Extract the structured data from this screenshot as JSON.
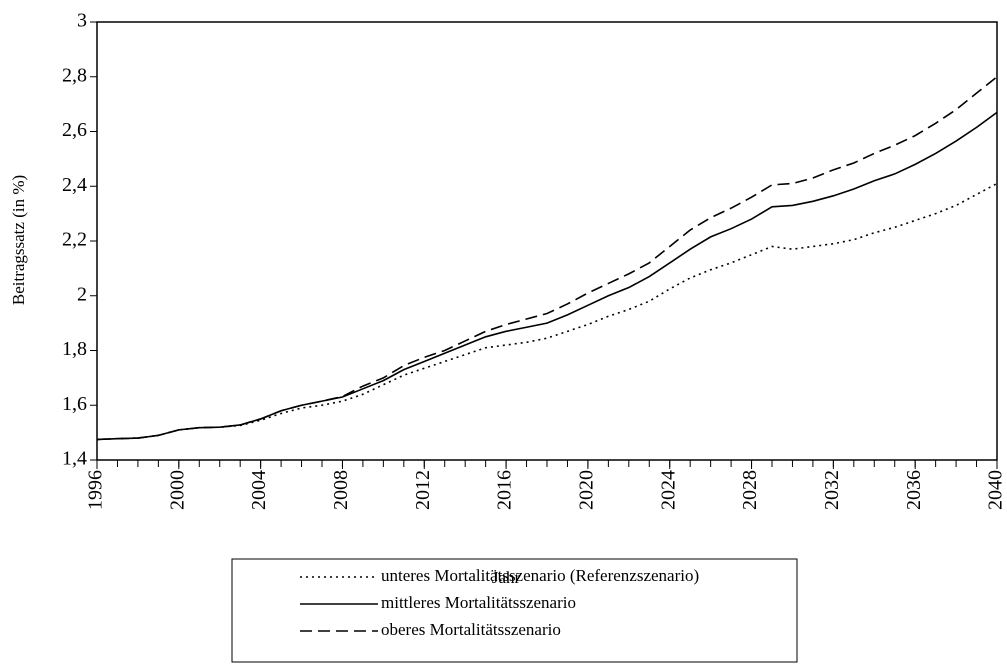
{
  "chart_data": {
    "type": "line",
    "xlabel": "Jahr",
    "ylabel": "Beitragssatz (in %)",
    "x": [
      1996,
      1997,
      1998,
      1999,
      2000,
      2001,
      2002,
      2003,
      2004,
      2005,
      2006,
      2007,
      2008,
      2009,
      2010,
      2011,
      2012,
      2013,
      2014,
      2015,
      2016,
      2017,
      2018,
      2019,
      2020,
      2021,
      2022,
      2023,
      2024,
      2025,
      2026,
      2027,
      2028,
      2029,
      2030,
      2031,
      2032,
      2033,
      2034,
      2035,
      2036,
      2037,
      2038,
      2039,
      2040
    ],
    "xlim": [
      1996,
      2040
    ],
    "xticks": [
      1996,
      2000,
      2004,
      2008,
      2012,
      2016,
      2020,
      2024,
      2028,
      2032,
      2036,
      2040
    ],
    "ylim": [
      1.4,
      3
    ],
    "yticks": [
      {
        "value": 1.4,
        "label": "1,4"
      },
      {
        "value": 1.6,
        "label": "1,6"
      },
      {
        "value": 1.8,
        "label": "1,8"
      },
      2,
      {
        "value": 2.2,
        "label": "2,2"
      },
      {
        "value": 2.4,
        "label": "2,4"
      },
      {
        "value": 2.6,
        "label": "2,6"
      },
      {
        "value": 2.8,
        "label": "2,8"
      },
      3
    ],
    "series": [
      {
        "name": "unteres Mortalitätsszenario (Referenzszenario)",
        "color": "#000000",
        "dash": "dotted",
        "values": [
          1.475,
          1.478,
          1.48,
          1.49,
          1.51,
          1.518,
          1.52,
          1.526,
          1.545,
          1.57,
          1.59,
          1.6,
          1.615,
          1.64,
          1.675,
          1.71,
          1.735,
          1.76,
          1.785,
          1.81,
          1.82,
          1.83,
          1.845,
          1.87,
          1.895,
          1.925,
          1.95,
          1.98,
          2.025,
          2.065,
          2.095,
          2.12,
          2.15,
          2.18,
          2.17,
          2.18,
          2.19,
          2.205,
          2.23,
          2.25,
          2.275,
          2.3,
          2.33,
          2.37,
          2.41
        ]
      },
      {
        "name": "mittleres Mortalitätsszenario",
        "color": "#000000",
        "dash": "solid",
        "values": [
          1.475,
          1.478,
          1.48,
          1.49,
          1.51,
          1.518,
          1.52,
          1.528,
          1.55,
          1.58,
          1.6,
          1.615,
          1.63,
          1.66,
          1.69,
          1.73,
          1.76,
          1.79,
          1.82,
          1.85,
          1.87,
          1.885,
          1.9,
          1.93,
          1.965,
          2.0,
          2.03,
          2.07,
          2.12,
          2.17,
          2.215,
          2.245,
          2.28,
          2.325,
          2.33,
          2.345,
          2.365,
          2.39,
          2.42,
          2.445,
          2.48,
          2.52,
          2.565,
          2.615,
          2.67
        ]
      },
      {
        "name": "oberes Mortalitätsszenario",
        "color": "#000000",
        "dash": "dashed",
        "values": [
          1.475,
          1.478,
          1.48,
          1.49,
          1.51,
          1.518,
          1.52,
          1.528,
          1.55,
          1.58,
          1.6,
          1.615,
          1.632,
          1.67,
          1.7,
          1.745,
          1.775,
          1.8,
          1.835,
          1.87,
          1.895,
          1.915,
          1.935,
          1.97,
          2.01,
          2.045,
          2.08,
          2.12,
          2.18,
          2.24,
          2.285,
          2.32,
          2.36,
          2.405,
          2.41,
          2.43,
          2.46,
          2.485,
          2.52,
          2.55,
          2.585,
          2.63,
          2.68,
          2.74,
          2.8
        ]
      }
    ]
  }
}
